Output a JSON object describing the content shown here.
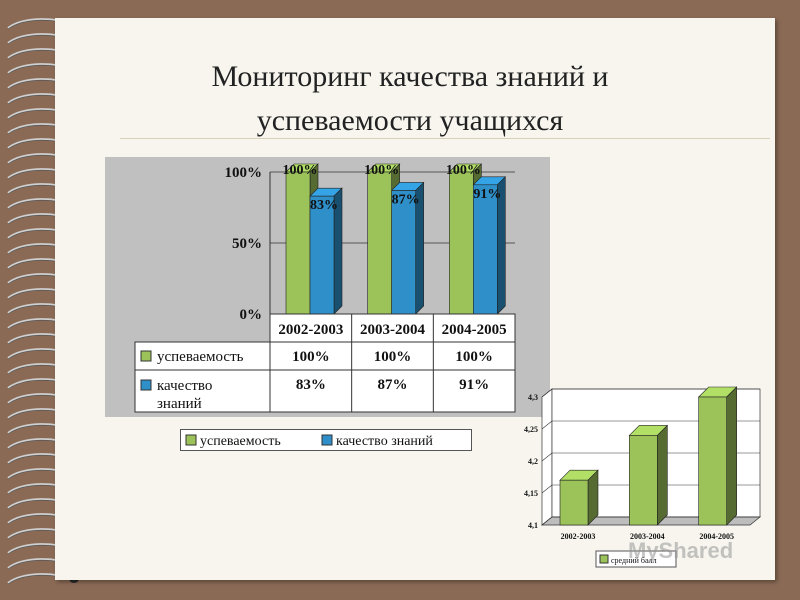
{
  "title_line1": "Мониторинг качества знаний и",
  "title_line2": "успеваемости учащихся",
  "watermark": "MyShared",
  "colors": {
    "series1": "#9bc35a",
    "series2": "#2e8fc9",
    "chart2_bar": "#9bc35a"
  },
  "chart_data": [
    {
      "type": "bar",
      "categories": [
        "2002-2003",
        "2003-2004",
        "2004-2005"
      ],
      "series": [
        {
          "name": "успеваемость",
          "values": [
            100,
            100,
            100
          ],
          "labels": [
            "100%",
            "100%",
            "100%"
          ]
        },
        {
          "name": "качество знаний",
          "values": [
            83,
            87,
            91
          ],
          "labels": [
            "83%",
            "87%",
            "91%"
          ]
        }
      ],
      "y_ticks": [
        "0%",
        "50%",
        "100%"
      ],
      "ylim": [
        0,
        100
      ],
      "data_table": {
        "rows": [
          {
            "label": "успеваемость",
            "values": [
              "100%",
              "100%",
              "100%"
            ]
          },
          {
            "label_line1": "качество",
            "label_line2": "знаний",
            "values": [
              "83%",
              "87%",
              "91%"
            ]
          }
        ]
      },
      "legend": [
        "успеваемость",
        "качество знаний"
      ],
      "legend_position": "bottom"
    },
    {
      "type": "bar",
      "categories": [
        "2002-2003",
        "2003-2004",
        "2004-2005"
      ],
      "series": [
        {
          "name": "средний балл",
          "values": [
            4.17,
            4.24,
            4.3
          ]
        }
      ],
      "y_ticks": [
        "4,1",
        "4,15",
        "4,2",
        "4,25",
        "4,3"
      ],
      "ylim": [
        4.1,
        4.3
      ],
      "legend": [
        "средний балл"
      ],
      "legend_position": "bottom-left"
    }
  ]
}
